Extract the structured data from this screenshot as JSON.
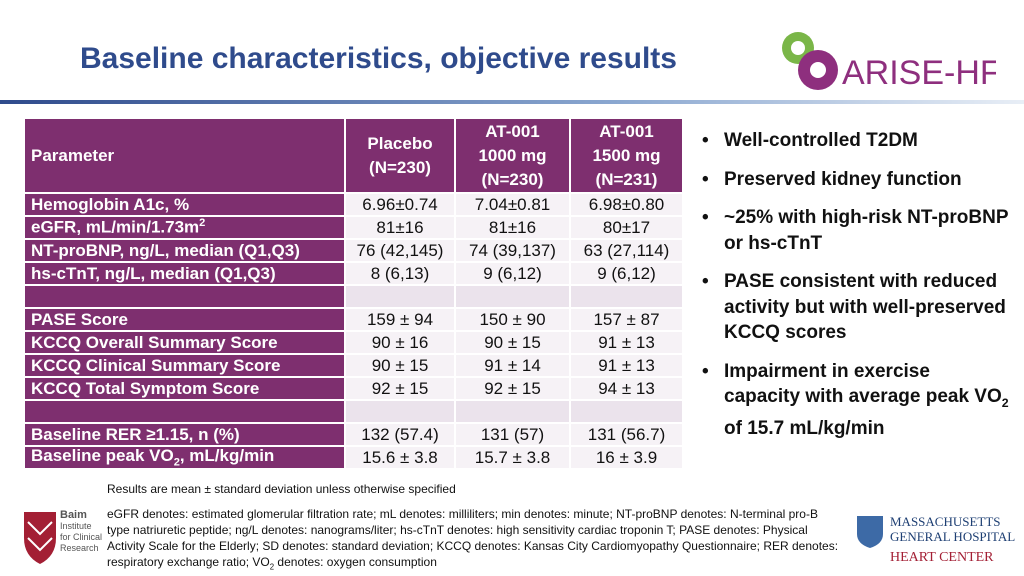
{
  "header": {
    "title": "Baseline characteristics, objective results",
    "logo": "ARISE-HF"
  },
  "table": {
    "columns": [
      [
        "Parameter"
      ],
      [
        "Placebo",
        "(N=230)"
      ],
      [
        "AT-001",
        "1000 mg",
        "(N=230)"
      ],
      [
        "AT-001",
        "1500 mg",
        "(N=231)"
      ]
    ],
    "groups": [
      [
        {
          "label": "Hemoglobin A1c, %",
          "values": [
            "6.96±0.74",
            "7.04±0.81",
            "6.98±0.80"
          ]
        },
        {
          "label": [
            {
              "text": "eGFR, mL/min/1.73m"
            },
            {
              "text": "2",
              "style": "sup"
            }
          ],
          "values": [
            "81±16",
            "81±16",
            "80±17"
          ]
        },
        {
          "label": "NT-proBNP, ng/L, median (Q1,Q3)",
          "values": [
            "76 (42,145)",
            "74 (39,137)",
            "63 (27,114)"
          ]
        },
        {
          "label": "hs-cTnT, ng/L, median (Q1,Q3)",
          "values": [
            "8 (6,13)",
            "9 (6,12)",
            "9 (6,12)"
          ]
        }
      ],
      [
        {
          "label": "PASE Score",
          "values": [
            "159 ± 94",
            "150 ± 90",
            "157 ± 87"
          ]
        },
        {
          "label": "KCCQ Overall Summary Score",
          "values": [
            "90 ± 16",
            "90 ± 15",
            "91 ± 13"
          ]
        },
        {
          "label": "KCCQ Clinical Summary Score",
          "values": [
            "90 ± 15",
            "91 ± 14",
            "91 ± 13"
          ]
        },
        {
          "label": "KCCQ Total Symptom Score",
          "values": [
            "92 ± 15",
            "92 ± 15",
            "94 ± 13"
          ]
        }
      ],
      [
        {
          "label": "Baseline RER ≥1.15, n (%)",
          "values": [
            "132 (57.4)",
            "131 (57)",
            "131 (56.7)"
          ]
        },
        {
          "label": [
            {
              "text": "Baseline peak VO"
            },
            {
              "text": "2",
              "style": "sub"
            },
            {
              "text": ", mL/kg/min"
            }
          ],
          "values": [
            "15.6 ± 3.8",
            "15.7 ± 3.8",
            "16 ± 3.9"
          ]
        }
      ]
    ]
  },
  "bullets": [
    "Well-controlled T2DM",
    "Preserved kidney function",
    "~25% with high-risk NT-proBNP or hs-cTnT",
    "PASE consistent with reduced activity but with well-preserved KCCQ scores",
    [
      {
        "text": "Impairment in exercise capacity with average peak VO"
      },
      {
        "text": "2",
        "style": "sub"
      },
      {
        "text": " of 15.7 mL/kg/min"
      }
    ]
  ],
  "footnotes": [
    "Results are mean ± standard deviation unless otherwise specified",
    [
      {
        "text": "eGFR denotes: estimated glomerular filtration rate; mL denotes: milliliters; min denotes: minute; NT-proBNP denotes: N-terminal pro-B type natriuretic peptide; ng/L denotes: nanograms/liter; hs-cTnT denotes: high sensitivity cardiac troponin T; PASE denotes: Physical Activity Scale for the Elderly; SD denotes: standard deviation; KCCQ denotes: Kansas City Cardiomyopathy Questionnaire; RER denotes: respiratory exchange ratio; VO"
      },
      {
        "text": "2",
        "style": "sub"
      },
      {
        "text": " denotes: oxygen consumption"
      }
    ]
  ],
  "logos": {
    "left": [
      "Baim",
      "Institute",
      "for Clinical",
      "Research"
    ],
    "right": [
      "MASSACHUSETTS",
      "GENERAL HOSPITAL",
      "HEART CENTER"
    ]
  }
}
